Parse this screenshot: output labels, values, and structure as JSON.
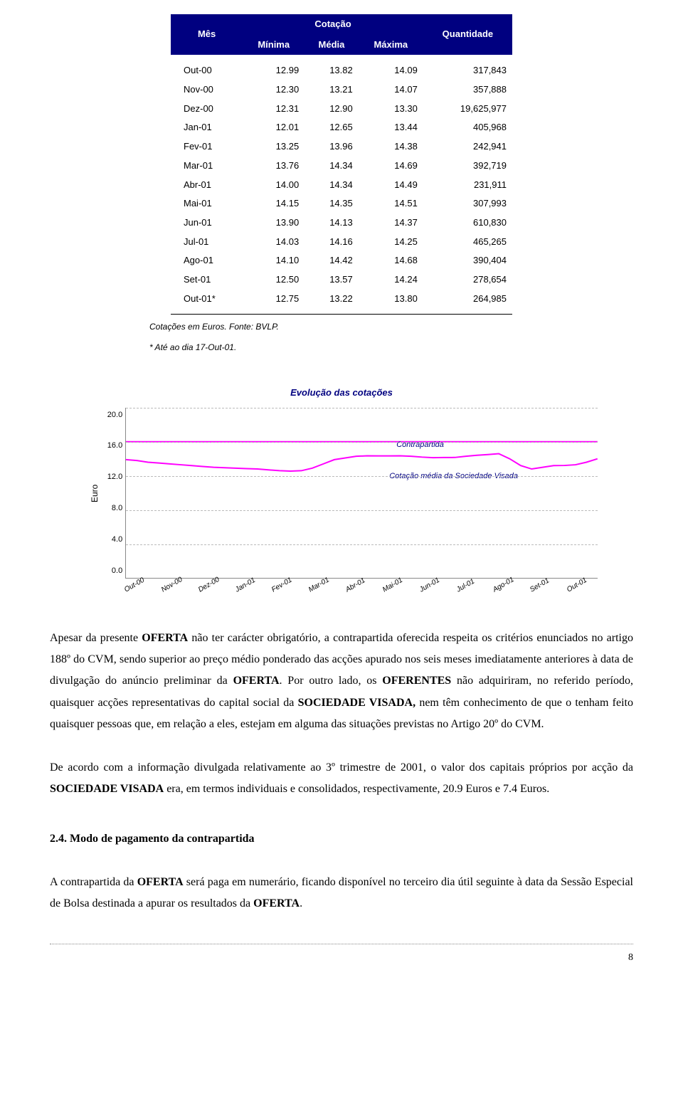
{
  "table": {
    "headers": {
      "month": "Mês",
      "cotacao": "Cotação",
      "quantidade": "Quantidade",
      "min": "Mínima",
      "avg": "Média",
      "max": "Máxima"
    },
    "rows": [
      {
        "m": "Out-00",
        "min": "12.99",
        "avg": "13.82",
        "max": "14.09",
        "q": "317,843"
      },
      {
        "m": "Nov-00",
        "min": "12.30",
        "avg": "13.21",
        "max": "14.07",
        "q": "357,888"
      },
      {
        "m": "Dez-00",
        "min": "12.31",
        "avg": "12.90",
        "max": "13.30",
        "q": "19,625,977"
      },
      {
        "m": "Jan-01",
        "min": "12.01",
        "avg": "12.65",
        "max": "13.44",
        "q": "405,968"
      },
      {
        "m": "Fev-01",
        "min": "13.25",
        "avg": "13.96",
        "max": "14.38",
        "q": "242,941"
      },
      {
        "m": "Mar-01",
        "min": "13.76",
        "avg": "14.34",
        "max": "14.69",
        "q": "392,719"
      },
      {
        "m": "Abr-01",
        "min": "14.00",
        "avg": "14.34",
        "max": "14.49",
        "q": "231,911"
      },
      {
        "m": "Mai-01",
        "min": "14.15",
        "avg": "14.35",
        "max": "14.51",
        "q": "307,993"
      },
      {
        "m": "Jun-01",
        "min": "13.90",
        "avg": "14.13",
        "max": "14.37",
        "q": "610,830"
      },
      {
        "m": "Jul-01",
        "min": "14.03",
        "avg": "14.16",
        "max": "14.25",
        "q": "465,265"
      },
      {
        "m": "Ago-01",
        "min": "14.10",
        "avg": "14.42",
        "max": "14.68",
        "q": "390,404"
      },
      {
        "m": "Set-01",
        "min": "12.50",
        "avg": "13.57",
        "max": "14.24",
        "q": "278,654"
      },
      {
        "m": "Out-01*",
        "min": "12.75",
        "avg": "13.22",
        "max": "13.80",
        "q": "264,985"
      }
    ],
    "footnote1": "Cotações em Euros. Fonte: BVLP.",
    "footnote2": "* Até ao dia 17-Out-01."
  },
  "chart": {
    "title": "Evolução das cotações",
    "ylabel": "Euro",
    "ymin": 0.0,
    "ymax": 20.0,
    "yticks": [
      "20.0",
      "16.0",
      "12.0",
      "8.0",
      "4.0",
      "0.0"
    ],
    "xlabels": [
      "Out-00",
      "Nov-00",
      "Dez-00",
      "Jan-01",
      "Fev-01",
      "Mar-01",
      "Abr-01",
      "Mai-01",
      "Jun-01",
      "Jul-01",
      "Ago-01",
      "Set-01",
      "Out-01"
    ],
    "contrapartida_label": "Contrapartida",
    "visada_label": "Cotação média da Sociedade Visada",
    "line_color": "#ff00ff",
    "grid_color": "#bbbbbb",
    "contrapartida_value": 16.0,
    "visada_series": [
      13.82,
      13.21,
      12.9,
      12.65,
      13.96,
      14.34,
      14.34,
      14.35,
      14.13,
      14.16,
      14.42,
      13.57,
      13.22
    ],
    "visada_detail": [
      13.9,
      13.8,
      13.6,
      13.5,
      13.4,
      13.3,
      13.2,
      13.1,
      13.0,
      12.95,
      12.9,
      12.85,
      12.8,
      12.7,
      12.6,
      12.55,
      12.6,
      12.9,
      13.4,
      13.9,
      14.1,
      14.3,
      14.35,
      14.34,
      14.34,
      14.35,
      14.3,
      14.2,
      14.13,
      14.15,
      14.16,
      14.3,
      14.42,
      14.5,
      14.6,
      14.0,
      13.2,
      12.8,
      13.0,
      13.2,
      13.22,
      13.3,
      13.6,
      14.0
    ]
  },
  "paragraphs": {
    "p1a": "Apesar da presente ",
    "p1_oferta1": "OFERTA",
    "p1b": " não ter carácter obrigatório, a contrapartida oferecida respeita os critérios enunciados no artigo 188º do CVM, sendo superior ao preço médio ponderado das acções apurado nos seis meses imediatamente anteriores à data de divulgação do anúncio preliminar da ",
    "p1_oferta2": "OFERTA",
    "p1c": ". Por outro lado, os ",
    "p1_oferentes": "OFERENTES",
    "p1d": " não adquiriram, no referido período, quaisquer acções representativas do capital social da ",
    "p1_soc": "SOCIEDADE VISADA,",
    "p1e": " nem têm conhecimento de que o tenham feito quaisquer pessoas que, em relação a eles, estejam em alguma das situações previstas no Artigo 20º do CVM.",
    "p2a": "De acordo com a informação divulgada relativamente ao 3º trimestre de 2001, o valor dos capitais próprios por acção da ",
    "p2_soc": "SOCIEDADE VISADA",
    "p2b": " era, em termos individuais e consolidados, respectivamente, 20.9 Euros e 7.4 Euros.",
    "section_heading": "2.4.  Modo de pagamento da contrapartida",
    "p3a": "A contrapartida da ",
    "p3_oferta": "OFERTA",
    "p3b": " será paga em numerário, ficando disponível no terceiro dia útil seguinte à data da Sessão Especial de Bolsa destinada a apurar os resultados da ",
    "p3_oferta2": "OFERTA",
    "p3c": "."
  },
  "page_number": "8"
}
